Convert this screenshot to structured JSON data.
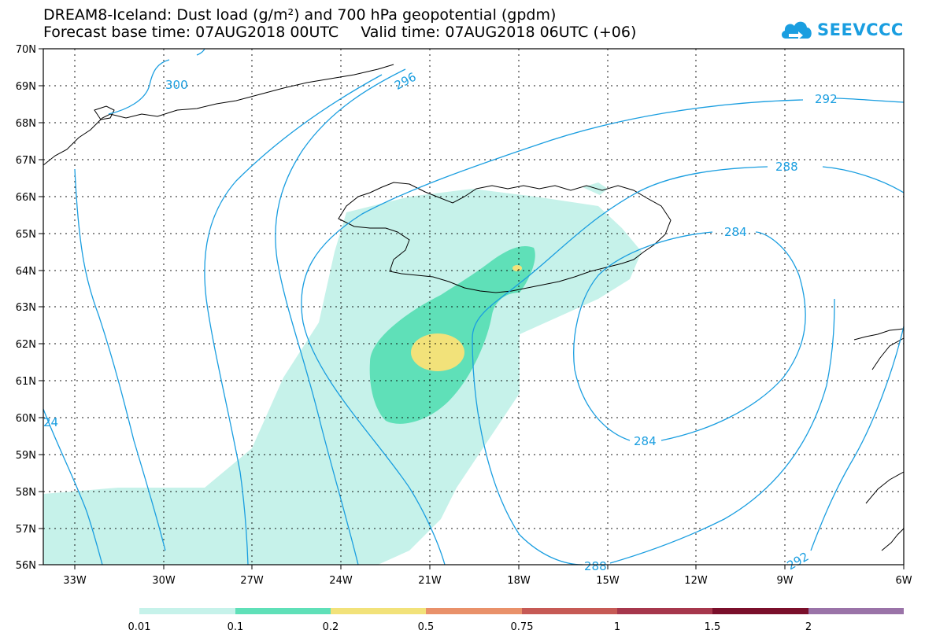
{
  "title_line1": "DREAM8-Iceland: Dust load (g/m²) and 700 hPa geopotential (gpdm)",
  "forecast_base": "Forecast base time: 07AUG2018 00UTC",
  "valid_time": "Valid time: 07AUG2018 06UTC (+06)",
  "logo_text": "SEEVCCC",
  "lat_labels": [
    "70N",
    "69N",
    "68N",
    "67N",
    "66N",
    "65N",
    "64N",
    "63N",
    "62N",
    "61N",
    "60N",
    "59N",
    "58N",
    "57N",
    "56N"
  ],
  "lon_labels": [
    "33W",
    "30W",
    "27W",
    "24W",
    "21W",
    "18W",
    "15W",
    "12W",
    "9W",
    "6W"
  ],
  "contour_labels": [
    "300",
    "296",
    "292",
    "288",
    "284",
    "284",
    "288",
    "292",
    "24"
  ],
  "colorbar": {
    "ticks": [
      "0.01",
      "0.1",
      "0.2",
      "0.5",
      "0.75",
      "1",
      "1.5",
      "2"
    ],
    "colors": [
      "#c6f2ea",
      "#5fe0b8",
      "#f2e27a",
      "#e9916a",
      "#c65a55",
      "#a6374c",
      "#7a0f2b",
      "#3e2a12",
      "#9a73a8"
    ]
  },
  "colors": {
    "contour": "#1a9ee0",
    "dust_low": "#c6f2ea",
    "dust_mid": "#5fe0b8",
    "dust_high": "#f2e27a"
  }
}
